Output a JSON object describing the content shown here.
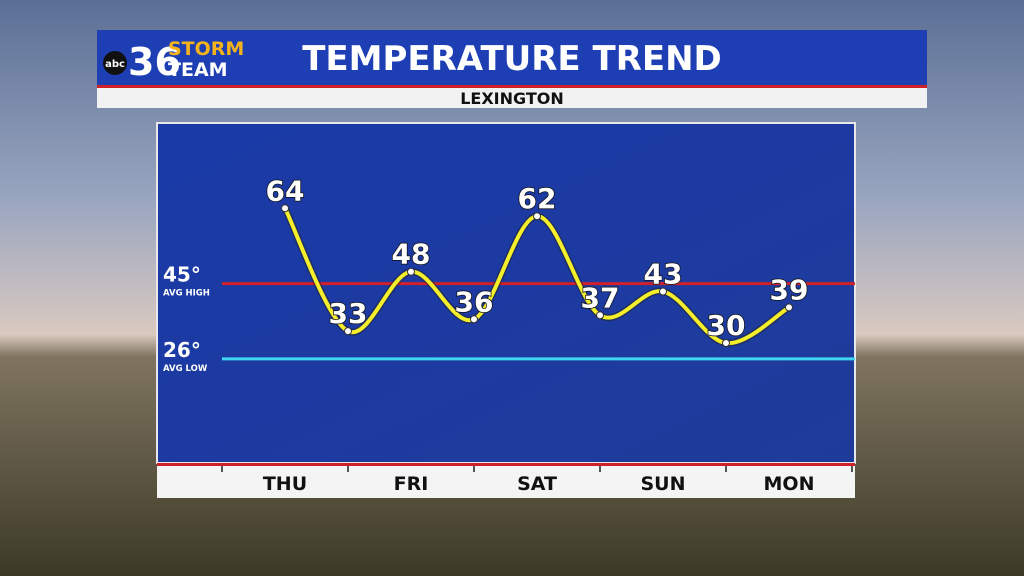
{
  "header": {
    "logo_network": "abc",
    "logo_number": "36",
    "logo_storm": "STORM",
    "logo_team": "TEAM"
  },
  "chart_data": {
    "type": "line",
    "title": "TEMPERATURE TREND",
    "subtitle": "LEXINGTON",
    "categories": [
      "THU",
      null,
      "FRI",
      null,
      "SAT",
      null,
      "SUN",
      null,
      "MON"
    ],
    "series": [
      {
        "color": "#f5ee2a",
        "values": [
          64,
          33,
          48,
          36,
          62,
          37,
          43,
          30,
          39
        ]
      }
    ],
    "ylim": [
      0,
      85
    ],
    "reference_lines": [
      {
        "value": 45,
        "label": "45°",
        "sublabel": "AVG HIGH",
        "color": "#d0202a"
      },
      {
        "value": 26,
        "label": "26°",
        "sublabel": "AVG LOW",
        "color": "#3fd6f2"
      }
    ]
  }
}
